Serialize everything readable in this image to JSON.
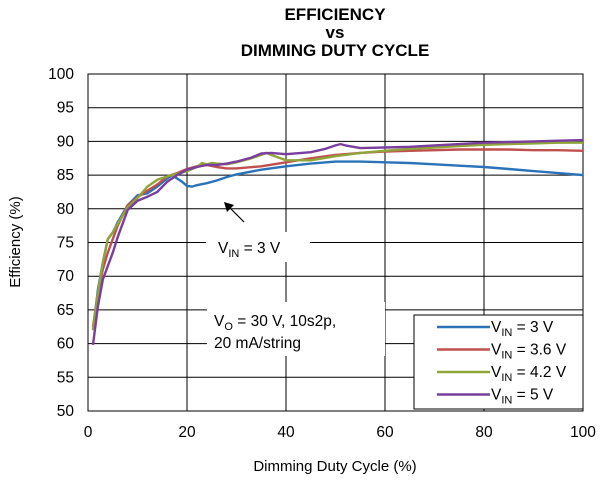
{
  "chart_data": {
    "type": "line",
    "title_lines": [
      "EFFICIENCY",
      "vs",
      "DIMMING DUTY CYCLE"
    ],
    "xlabel": "Dimming Duty Cycle (%)",
    "ylabel": "Efficiency (%)",
    "xlim": [
      0,
      100
    ],
    "ylim": [
      50,
      100
    ],
    "xticks": [
      "0",
      "20",
      "40",
      "60",
      "80",
      "100"
    ],
    "yticks": [
      "50",
      "55",
      "60",
      "65",
      "70",
      "75",
      "80",
      "85",
      "90",
      "95",
      "100"
    ],
    "grid": true,
    "legend_position": "bottom-right",
    "annotations": [
      {
        "main": "V",
        "sub": "IN",
        "rest": " = 3 V"
      },
      {
        "line1_main": "V",
        "line1_sub": "O",
        "line1_rest": " = 30 V, 10s2p,",
        "line2": "20 mA/string"
      }
    ],
    "series": [
      {
        "legend_main": "V",
        "legend_sub": "IN",
        "legend_rest": " = 3 V",
        "color": "#2a73b8",
        "x": [
          1,
          2,
          3,
          4,
          5,
          6,
          8,
          10,
          12,
          14,
          16,
          17,
          18,
          19,
          20,
          21,
          22,
          24,
          26,
          28,
          30,
          35,
          40,
          45,
          50,
          55,
          60,
          65,
          70,
          75,
          80,
          85,
          90,
          95,
          100
        ],
        "y": [
          62,
          68,
          72,
          75.5,
          76.5,
          78,
          80.5,
          82,
          82.3,
          83.3,
          84.5,
          85,
          84.5,
          84,
          83.4,
          83.3,
          83.5,
          83.8,
          84.2,
          84.7,
          85.1,
          85.8,
          86.3,
          86.7,
          87,
          87,
          86.9,
          86.8,
          86.6,
          86.4,
          86.2,
          85.9,
          85.6,
          85.3,
          85
        ]
      },
      {
        "legend_main": "V",
        "legend_sub": "IN",
        "legend_rest": " = 3.6 V",
        "color": "#c0504d",
        "x": [
          1,
          2,
          3,
          4,
          5,
          6,
          8,
          10,
          12,
          14,
          16,
          18,
          20,
          22,
          24,
          26,
          28,
          30,
          35,
          40,
          45,
          50,
          55,
          60,
          65,
          70,
          75,
          80,
          85,
          90,
          95,
          100
        ],
        "y": [
          62.5,
          67.5,
          71,
          73.5,
          75.5,
          77.5,
          80.5,
          81.7,
          82.7,
          83.6,
          84.8,
          85.3,
          85.9,
          86.3,
          86.5,
          86.2,
          86,
          86,
          86.3,
          86.9,
          87.5,
          88,
          88.3,
          88.5,
          88.6,
          88.7,
          88.8,
          88.8,
          88.8,
          88.7,
          88.7,
          88.6
        ]
      },
      {
        "legend_main": "V",
        "legend_sub": "IN",
        "legend_rest": " = 4.2 V",
        "color": "#8fa53a",
        "x": [
          1,
          2,
          3,
          4,
          5,
          6,
          8,
          10,
          12,
          14,
          16,
          18,
          20,
          22,
          23,
          24,
          25,
          26,
          28,
          30,
          33,
          35,
          36,
          37,
          40,
          45,
          50,
          55,
          60,
          65,
          70,
          75,
          80,
          85,
          90,
          95,
          100
        ],
        "y": [
          62,
          67.5,
          72,
          75.5,
          76.5,
          77.8,
          80.2,
          81.6,
          83.3,
          84.3,
          84.8,
          85.2,
          85.6,
          86.2,
          86.8,
          86.6,
          86.8,
          86.7,
          86.6,
          86.9,
          87.5,
          88,
          88.3,
          88,
          87.2,
          87.2,
          87.8,
          88.3,
          88.6,
          88.9,
          89.1,
          89.3,
          89.5,
          89.6,
          89.7,
          89.8,
          89.8
        ]
      },
      {
        "legend_main": "V",
        "legend_sub": "IN",
        "legend_rest": " = 5 V",
        "color": "#7a3e9e",
        "x": [
          1,
          2,
          3,
          4,
          5,
          6,
          8,
          10,
          12,
          14,
          16,
          18,
          20,
          22,
          24,
          26,
          28,
          30,
          33,
          35,
          37,
          40,
          45,
          48,
          50,
          51,
          52,
          55,
          60,
          65,
          70,
          75,
          80,
          85,
          90,
          95,
          100
        ],
        "y": [
          59.8,
          65.5,
          69.5,
          71.5,
          73.5,
          75.8,
          79.8,
          81.2,
          81.8,
          82.5,
          84,
          85,
          85.8,
          86.2,
          86.5,
          86.5,
          86.7,
          87,
          87.6,
          88.2,
          88.3,
          88.1,
          88.4,
          88.9,
          89.4,
          89.6,
          89.4,
          89,
          89.1,
          89.2,
          89.4,
          89.6,
          89.8,
          89.9,
          90,
          90.1,
          90.2
        ]
      }
    ]
  }
}
